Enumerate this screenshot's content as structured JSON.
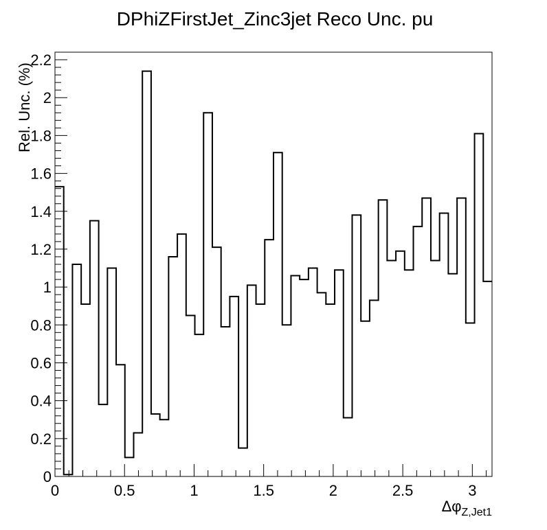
{
  "chart_data": {
    "type": "histogram",
    "title": "DPhiZFirstJet_Zinc3jet Reco Unc. pu",
    "ylabel": "Rel. Unc. (%)",
    "xlabel": {
      "main": "Δφ",
      "subscript": "Z,Jet1"
    },
    "xlim": [
      0,
      3.14159
    ],
    "ylim": [
      0,
      2.24
    ],
    "x_ticks": [
      0,
      0.5,
      1,
      1.5,
      2,
      2.5,
      3
    ],
    "x_tick_labels": [
      "0",
      "0.5",
      "1",
      "1.5",
      "2",
      "2.5",
      "3"
    ],
    "y_ticks": [
      0,
      0.2,
      0.4,
      0.6,
      0.8,
      1,
      1.2,
      1.4,
      1.6,
      1.8,
      2,
      2.2
    ],
    "y_tick_labels": [
      "0",
      "0.2",
      "0.4",
      "0.6",
      "0.8",
      "1",
      "1.2",
      "1.4",
      "1.6",
      "1.8",
      "2",
      "2.2"
    ],
    "n_bins": 50,
    "values": [
      1.53,
      0.01,
      1.12,
      0.91,
      1.35,
      0.38,
      1.1,
      0.59,
      0.1,
      0.23,
      2.14,
      0.33,
      0.3,
      1.16,
      1.28,
      0.85,
      0.75,
      1.92,
      1.21,
      0.79,
      0.95,
      0.15,
      1.01,
      0.91,
      1.25,
      1.71,
      0.8,
      1.06,
      1.04,
      1.1,
      0.97,
      0.91,
      1.09,
      0.31,
      1.38,
      0.82,
      0.93,
      1.46,
      1.14,
      1.19,
      1.09,
      1.32,
      1.47,
      1.14,
      1.39,
      1.07,
      1.47,
      0.81,
      1.81,
      1.03
    ],
    "grid": false,
    "legend": "none"
  }
}
